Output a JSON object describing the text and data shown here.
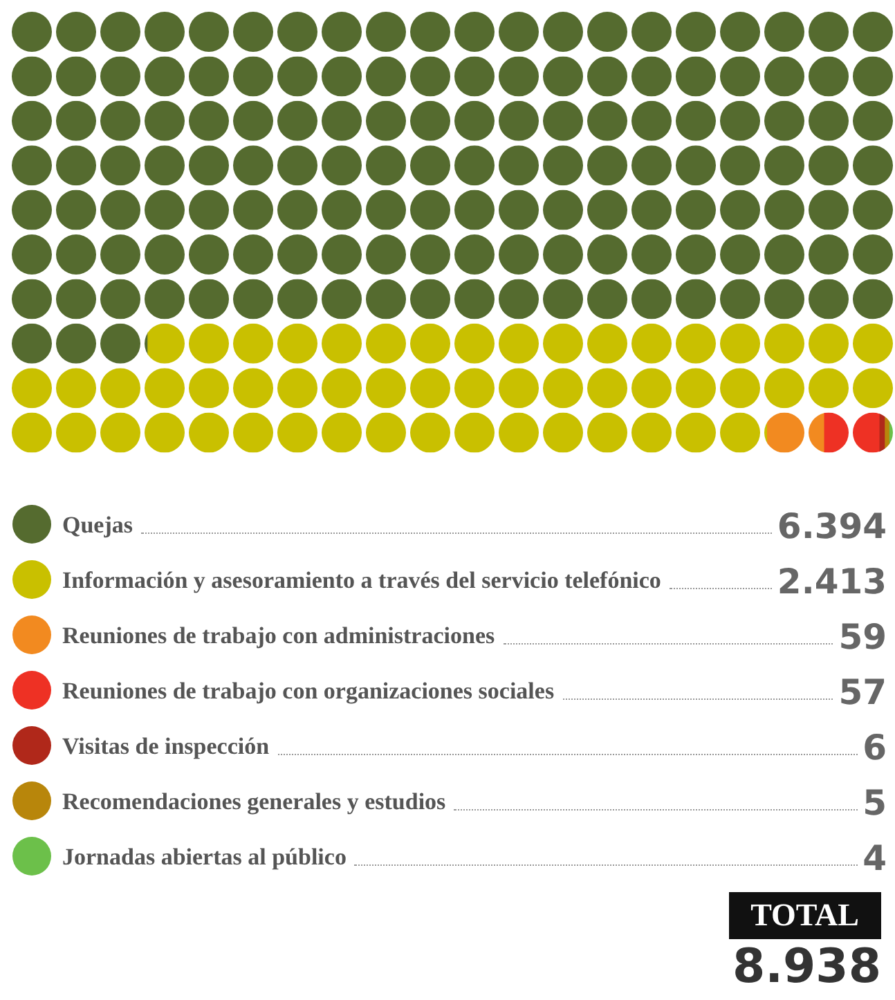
{
  "chart_data": {
    "type": "other",
    "categories": [
      "Quejas",
      "Información y asesoramiento a través del servicio telefónico",
      "Reuniones de trabajo con administraciones",
      "Reuniones de trabajo con organizaciones sociales",
      "Visitas de inspección",
      "Recomendaciones generales y estudios",
      "Jornadas abiertas al público"
    ],
    "values": [
      6394,
      2413,
      59,
      57,
      6,
      5,
      4
    ],
    "value_labels": [
      "6.394",
      "2.413",
      "59",
      "57",
      "6",
      "5",
      "4"
    ],
    "colors": [
      "#556b2f",
      "#c9c000",
      "#f28a20",
      "#ee3124",
      "#b0281a",
      "#b8860b",
      "#6cc04a"
    ],
    "annotations": [
      "TOTAL",
      "8.938"
    ]
  }
}
